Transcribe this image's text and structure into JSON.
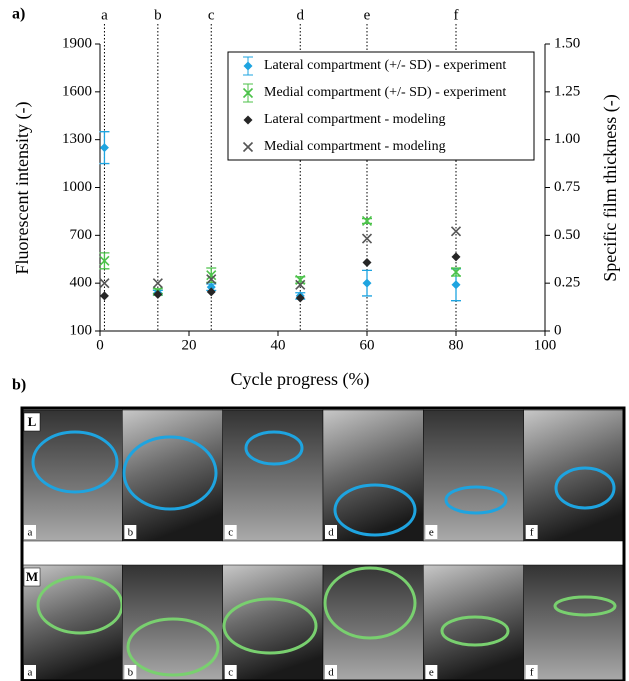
{
  "chart_data": {
    "type": "scatter",
    "panel_label": "a)",
    "xlabel": "Cycle progress (%)",
    "ylabel": "Fluorescent intensity  (-)",
    "y2label": "Specific  film thickness  (-)",
    "x": [
      1,
      13,
      25,
      45,
      60,
      80
    ],
    "top_labels": [
      "a",
      "b",
      "c",
      "d",
      "e",
      "f"
    ],
    "series": [
      {
        "name": "Lateral compartment (+/- SD) - experiment",
        "color": "#1ea4e0",
        "marker": "diamond",
        "values": [
          1250,
          340,
          375,
          320,
          400,
          390
        ],
        "errors": [
          100,
          15,
          20,
          20,
          80,
          100
        ]
      },
      {
        "name": "Medial compartment (+/- SD) - experiment",
        "color": "#4cc24a",
        "marker": "x",
        "values": [
          540,
          350,
          450,
          420,
          790,
          470
        ],
        "errors": [
          50,
          15,
          45,
          20,
          15,
          25
        ]
      },
      {
        "name": "Lateral compartment - modeling",
        "color": "#262626",
        "marker": "diamond",
        "values": [
          320,
          330,
          345,
          307,
          530,
          565
        ]
      },
      {
        "name": "Medial compartment - modeling",
        "color": "#555555",
        "marker": "x",
        "values": [
          400,
          400,
          425,
          390,
          680,
          725
        ]
      }
    ],
    "xlim": [
      0,
      100
    ],
    "xticks": [
      0,
      20,
      40,
      60,
      80,
      100
    ],
    "ylim": [
      100,
      1900
    ],
    "yticks": [
      100,
      400,
      700,
      1000,
      1300,
      1600,
      1900
    ],
    "y2lim": [
      0,
      1.5
    ],
    "y2ticks": [
      0,
      0.25,
      {
        "value": 0.5,
        "label": "0.50"
      },
      0.75,
      {
        "value": 1,
        "label": "1.00"
      },
      1.25,
      {
        "value": 1.5,
        "label": "1.50"
      }
    ],
    "legend": "upper right"
  },
  "image_panels": {
    "label": "b)",
    "rows": [
      {
        "label": "L",
        "cells": [
          "a",
          "b",
          "c",
          "d",
          "e",
          "f"
        ]
      },
      {
        "label": "M",
        "cells": [
          "a",
          "b",
          "c",
          "d",
          "e",
          "f"
        ]
      }
    ]
  }
}
